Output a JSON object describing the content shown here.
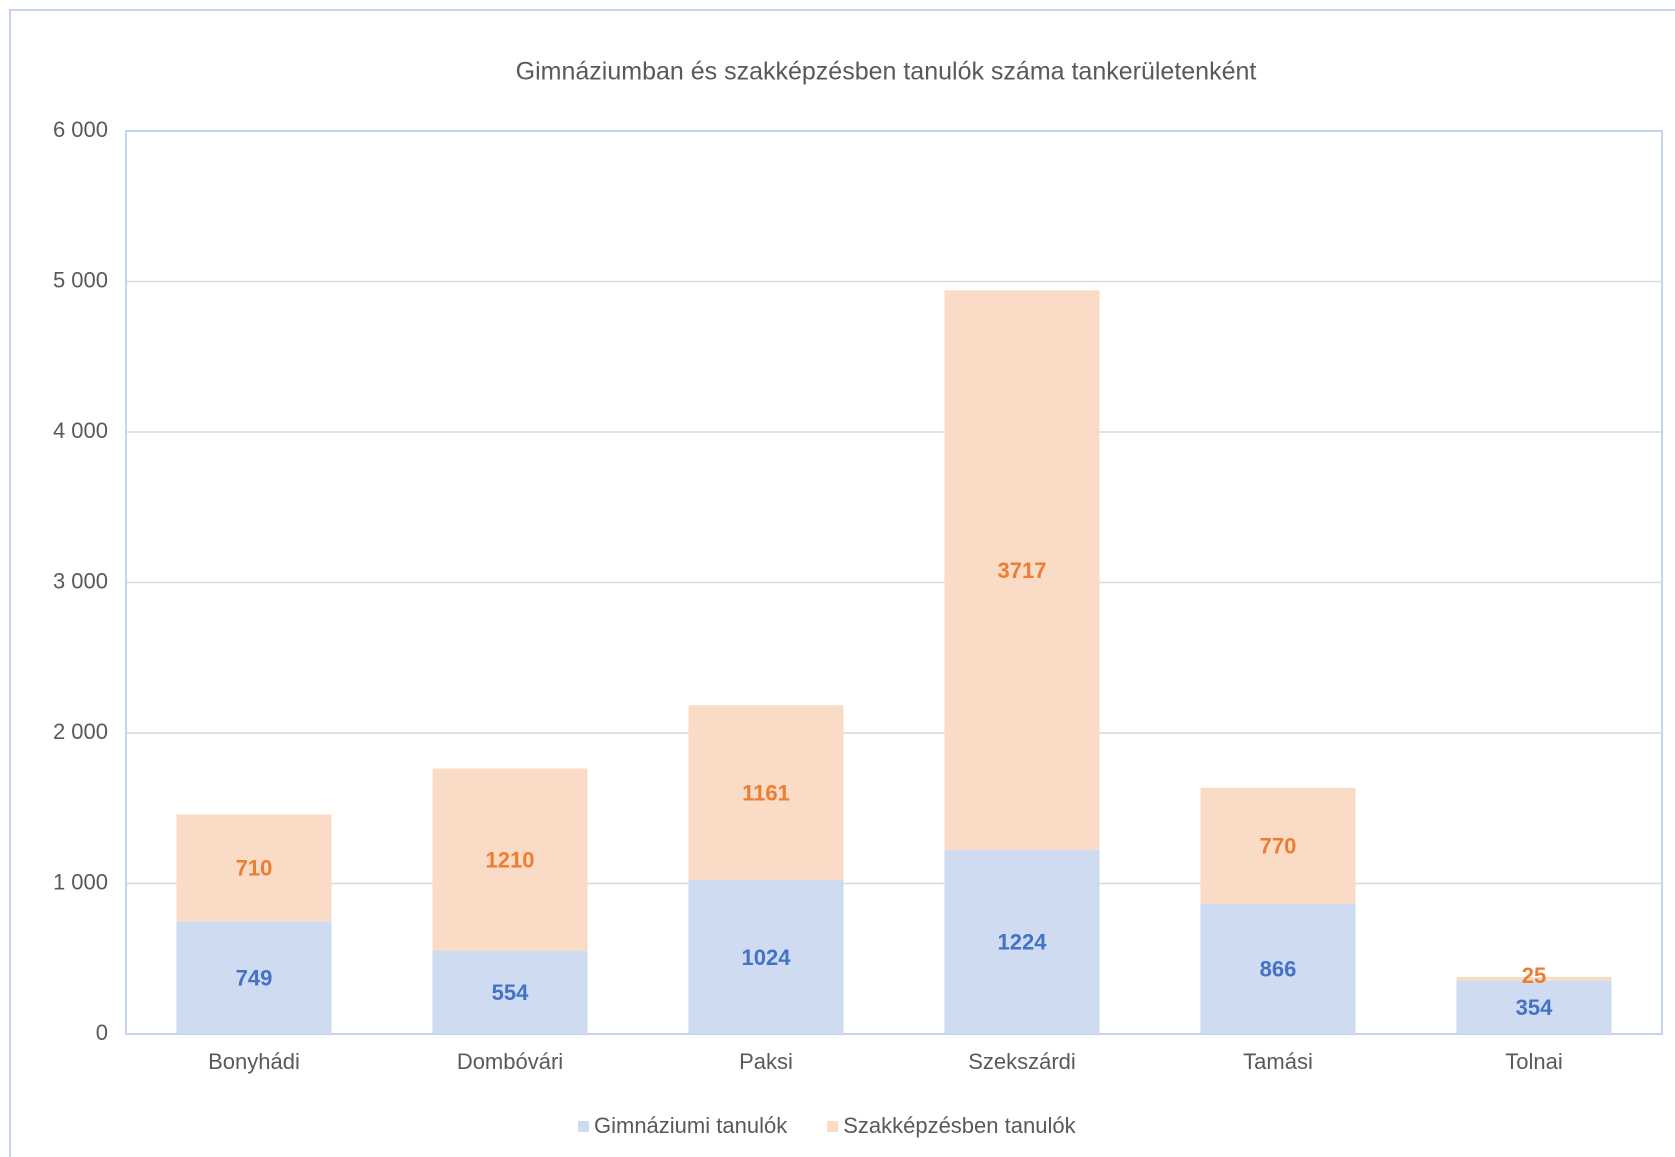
{
  "chart_data": {
    "type": "stacked_bar",
    "title": "Gimnáziumban és szakképzésben tanulók száma tankerületenként",
    "categories": [
      "Bonyhádi",
      "Dombóvári",
      "Paksi",
      "Szekszárdi",
      "Tamási",
      "Tolnai"
    ],
    "series": [
      {
        "name": "Gimnáziumi tanulók",
        "color": "#cfdbf1",
        "label_color": "#4472c4",
        "values": [
          749,
          554,
          1024,
          1224,
          866,
          354
        ]
      },
      {
        "name": "Szakképzésben tanulók",
        "color": "#fadbc5",
        "label_color": "#ed7d31",
        "values": [
          710,
          1210,
          1161,
          3717,
          770,
          25
        ]
      }
    ],
    "ylim": [
      0,
      6000
    ],
    "yticks": [
      0,
      {
        "value": 1000,
        "label": "1 000"
      },
      {
        "value": 2000,
        "label": "2 000"
      },
      {
        "value": 3000,
        "label": "3 000"
      },
      {
        "value": 4000,
        "label": "4 000"
      },
      {
        "value": 5000,
        "label": "5 000"
      },
      {
        "value": 6000,
        "label": "6 000"
      }
    ],
    "grid": true,
    "legend": "bottom"
  }
}
